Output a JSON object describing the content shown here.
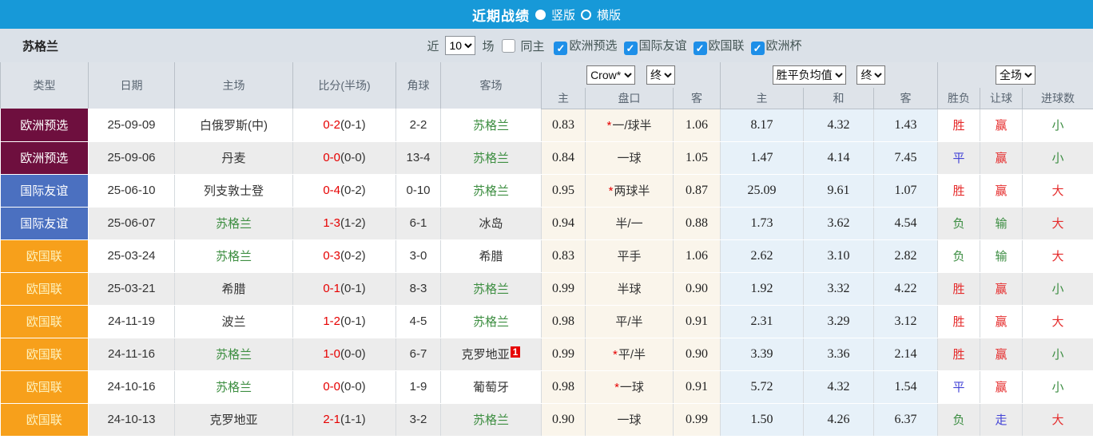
{
  "topbar": {
    "title": "近期战绩",
    "radio_vertical_label": "竖版",
    "radio_horizontal_label": "横版",
    "selected_layout": "竖版"
  },
  "filterbar": {
    "team": "苏格兰",
    "recent_label": "近",
    "recent_value": "10",
    "matches_label": "场",
    "same_home_label": "同主",
    "same_home_checked": false,
    "competitions": [
      "欧洲预选",
      "国际友谊",
      "欧国联",
      "欧洲杯"
    ],
    "competitions_checked": [
      true,
      true,
      true,
      true
    ]
  },
  "table": {
    "static_headers": [
      "类型",
      "日期",
      "主场",
      "比分(半场)",
      "角球",
      "客场"
    ],
    "odds_group": {
      "select1": "Crow*",
      "select2": "终",
      "sub": [
        "主",
        "盘口",
        "客"
      ]
    },
    "avg_group": {
      "select1": "胜平负均值",
      "select2": "终",
      "sub": [
        "主",
        "和",
        "客"
      ]
    },
    "result_group": {
      "select1": "全场",
      "sub": [
        "胜负",
        "让球",
        "进球数"
      ]
    },
    "rows": [
      {
        "type": "欧洲预选",
        "type_key": "preselect",
        "date": "25-09-09",
        "home": "白俄罗斯(中)",
        "home_green": false,
        "score": "0-2",
        "half": "(0-1)",
        "corner": "2-2",
        "away": "苏格兰",
        "away_green": true,
        "away_badge": "",
        "odds_home": "0.83",
        "handicap": "一/球半",
        "star": true,
        "odds_away": "1.06",
        "avg_home": "8.17",
        "avg_draw": "4.32",
        "avg_away": "1.43",
        "result": "胜",
        "result_c": "red",
        "spread": "赢",
        "spread_c": "red",
        "goals": "小",
        "goals_c": "green"
      },
      {
        "type": "欧洲预选",
        "type_key": "preselect",
        "date": "25-09-06",
        "home": "丹麦",
        "home_green": false,
        "score": "0-0",
        "half": "(0-0)",
        "corner": "13-4",
        "away": "苏格兰",
        "away_green": true,
        "away_badge": "",
        "odds_home": "0.84",
        "handicap": "一球",
        "star": false,
        "odds_away": "1.05",
        "avg_home": "1.47",
        "avg_draw": "4.14",
        "avg_away": "7.45",
        "result": "平",
        "result_c": "blue",
        "spread": "赢",
        "spread_c": "red",
        "goals": "小",
        "goals_c": "green"
      },
      {
        "type": "国际友谊",
        "type_key": "friendly",
        "date": "25-06-10",
        "home": "列支敦士登",
        "home_green": false,
        "score": "0-4",
        "half": "(0-2)",
        "corner": "0-10",
        "away": "苏格兰",
        "away_green": true,
        "away_badge": "",
        "odds_home": "0.95",
        "handicap": "两球半",
        "star": true,
        "odds_away": "0.87",
        "avg_home": "25.09",
        "avg_draw": "9.61",
        "avg_away": "1.07",
        "result": "胜",
        "result_c": "red",
        "spread": "赢",
        "spread_c": "red",
        "goals": "大",
        "goals_c": "red"
      },
      {
        "type": "国际友谊",
        "type_key": "friendly",
        "date": "25-06-07",
        "home": "苏格兰",
        "home_green": true,
        "score": "1-3",
        "half": "(1-2)",
        "corner": "6-1",
        "away": "冰岛",
        "away_green": false,
        "away_badge": "",
        "odds_home": "0.94",
        "handicap": "半/一",
        "star": false,
        "odds_away": "0.88",
        "avg_home": "1.73",
        "avg_draw": "3.62",
        "avg_away": "4.54",
        "result": "负",
        "result_c": "green",
        "spread": "输",
        "spread_c": "green",
        "goals": "大",
        "goals_c": "red"
      },
      {
        "type": "欧国联",
        "type_key": "nations",
        "date": "25-03-24",
        "home": "苏格兰",
        "home_green": true,
        "score": "0-3",
        "half": "(0-2)",
        "corner": "3-0",
        "away": "希腊",
        "away_green": false,
        "away_badge": "",
        "odds_home": "0.83",
        "handicap": "平手",
        "star": false,
        "odds_away": "1.06",
        "avg_home": "2.62",
        "avg_draw": "3.10",
        "avg_away": "2.82",
        "result": "负",
        "result_c": "green",
        "spread": "输",
        "spread_c": "green",
        "goals": "大",
        "goals_c": "red"
      },
      {
        "type": "欧国联",
        "type_key": "nations",
        "date": "25-03-21",
        "home": "希腊",
        "home_green": false,
        "score": "0-1",
        "half": "(0-1)",
        "corner": "8-3",
        "away": "苏格兰",
        "away_green": true,
        "away_badge": "",
        "odds_home": "0.99",
        "handicap": "半球",
        "star": false,
        "odds_away": "0.90",
        "avg_home": "1.92",
        "avg_draw": "3.32",
        "avg_away": "4.22",
        "result": "胜",
        "result_c": "red",
        "spread": "赢",
        "spread_c": "red",
        "goals": "小",
        "goals_c": "green"
      },
      {
        "type": "欧国联",
        "type_key": "nations",
        "date": "24-11-19",
        "home": "波兰",
        "home_green": false,
        "score": "1-2",
        "half": "(0-1)",
        "corner": "4-5",
        "away": "苏格兰",
        "away_green": true,
        "away_badge": "",
        "odds_home": "0.98",
        "handicap": "平/半",
        "star": false,
        "odds_away": "0.91",
        "avg_home": "2.31",
        "avg_draw": "3.29",
        "avg_away": "3.12",
        "result": "胜",
        "result_c": "red",
        "spread": "赢",
        "spread_c": "red",
        "goals": "大",
        "goals_c": "red"
      },
      {
        "type": "欧国联",
        "type_key": "nations",
        "date": "24-11-16",
        "home": "苏格兰",
        "home_green": true,
        "score": "1-0",
        "half": "(0-0)",
        "corner": "6-7",
        "away": "克罗地亚",
        "away_green": false,
        "away_badge": "1",
        "odds_home": "0.99",
        "handicap": "平/半",
        "star": true,
        "odds_away": "0.90",
        "avg_home": "3.39",
        "avg_draw": "3.36",
        "avg_away": "2.14",
        "result": "胜",
        "result_c": "red",
        "spread": "赢",
        "spread_c": "red",
        "goals": "小",
        "goals_c": "green"
      },
      {
        "type": "欧国联",
        "type_key": "nations",
        "date": "24-10-16",
        "home": "苏格兰",
        "home_green": true,
        "score": "0-0",
        "half": "(0-0)",
        "corner": "1-9",
        "away": "葡萄牙",
        "away_green": false,
        "away_badge": "",
        "odds_home": "0.98",
        "handicap": "一球",
        "star": true,
        "odds_away": "0.91",
        "avg_home": "5.72",
        "avg_draw": "4.32",
        "avg_away": "1.54",
        "result": "平",
        "result_c": "blue",
        "spread": "赢",
        "spread_c": "red",
        "goals": "小",
        "goals_c": "green"
      },
      {
        "type": "欧国联",
        "type_key": "nations",
        "date": "24-10-13",
        "home": "克罗地亚",
        "home_green": false,
        "score": "2-1",
        "half": "(1-1)",
        "corner": "3-2",
        "away": "苏格兰",
        "away_green": true,
        "away_badge": "",
        "odds_home": "0.90",
        "handicap": "一球",
        "star": false,
        "odds_away": "0.99",
        "avg_home": "1.50",
        "avg_draw": "4.26",
        "avg_away": "6.37",
        "result": "负",
        "result_c": "green",
        "spread": "走",
        "spread_c": "blue",
        "goals": "大",
        "goals_c": "red"
      }
    ]
  },
  "colors": {
    "topbar_blue": "#1799d8",
    "filter_bg": "#dbe1e8",
    "header_bg": "#dee3e9",
    "type_preselect": "#6e0f3e",
    "type_friendly": "#4b70c0",
    "type_nations": "#f7a01b",
    "odds_cell_bg": "#faf5eb",
    "avg_cell_bg": "#e7f1f9",
    "alt_row_bg": "#ececec",
    "score_red": "#e60000",
    "team_green": "#3d8e41",
    "win_red": "#e52b2b",
    "lose_green": "#3c8d42",
    "draw_blue": "#4343d6",
    "checkbox_blue": "#1e8fe8"
  }
}
